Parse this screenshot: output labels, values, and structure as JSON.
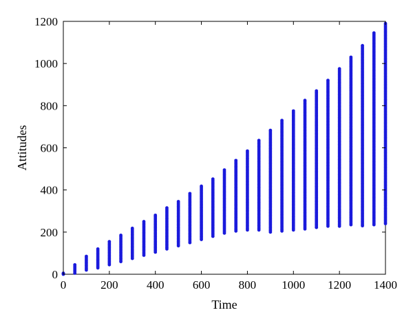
{
  "chart_data": {
    "type": "scatter",
    "title": "",
    "xlabel": "Time",
    "ylabel": "Attitudes",
    "xlim": [
      0,
      1400
    ],
    "ylim": [
      0,
      1200
    ],
    "x_ticks": [
      0,
      200,
      400,
      600,
      800,
      1000,
      1200,
      1400
    ],
    "y_ticks": [
      0,
      200,
      400,
      600,
      800,
      1000,
      1200
    ],
    "x_tick_labels": [
      "0",
      "200",
      "400",
      "600",
      "800",
      "1000",
      "1200",
      "1400"
    ],
    "y_tick_labels": [
      "0",
      "200",
      "400",
      "600",
      "800",
      "1000",
      "1200"
    ],
    "grid": false,
    "legend": "none",
    "marker_color": "#1a1adc",
    "note_series": "Each time step shows a vertical column of points spanning [min, max] attitude values.",
    "series": [
      {
        "columns": [
          {
            "x": 0,
            "min": 0,
            "max": 5
          },
          {
            "x": 50,
            "min": 5,
            "max": 45
          },
          {
            "x": 100,
            "min": 20,
            "max": 85
          },
          {
            "x": 150,
            "min": 30,
            "max": 120
          },
          {
            "x": 200,
            "min": 45,
            "max": 155
          },
          {
            "x": 250,
            "min": 60,
            "max": 185
          },
          {
            "x": 300,
            "min": 75,
            "max": 218
          },
          {
            "x": 350,
            "min": 90,
            "max": 250
          },
          {
            "x": 400,
            "min": 105,
            "max": 280
          },
          {
            "x": 450,
            "min": 120,
            "max": 315
          },
          {
            "x": 500,
            "min": 135,
            "max": 345
          },
          {
            "x": 550,
            "min": 150,
            "max": 383
          },
          {
            "x": 600,
            "min": 165,
            "max": 418
          },
          {
            "x": 650,
            "min": 180,
            "max": 452
          },
          {
            "x": 700,
            "min": 195,
            "max": 495
          },
          {
            "x": 750,
            "min": 205,
            "max": 540
          },
          {
            "x": 800,
            "min": 210,
            "max": 585
          },
          {
            "x": 850,
            "min": 210,
            "max": 635
          },
          {
            "x": 900,
            "min": 200,
            "max": 683
          },
          {
            "x": 950,
            "min": 205,
            "max": 730
          },
          {
            "x": 1000,
            "min": 210,
            "max": 775
          },
          {
            "x": 1050,
            "min": 215,
            "max": 825
          },
          {
            "x": 1100,
            "min": 222,
            "max": 870
          },
          {
            "x": 1150,
            "min": 228,
            "max": 920
          },
          {
            "x": 1200,
            "min": 228,
            "max": 975
          },
          {
            "x": 1250,
            "min": 235,
            "max": 1030
          },
          {
            "x": 1300,
            "min": 230,
            "max": 1085
          },
          {
            "x": 1350,
            "min": 235,
            "max": 1145
          },
          {
            "x": 1400,
            "min": 240,
            "max": 1190
          }
        ]
      }
    ]
  }
}
